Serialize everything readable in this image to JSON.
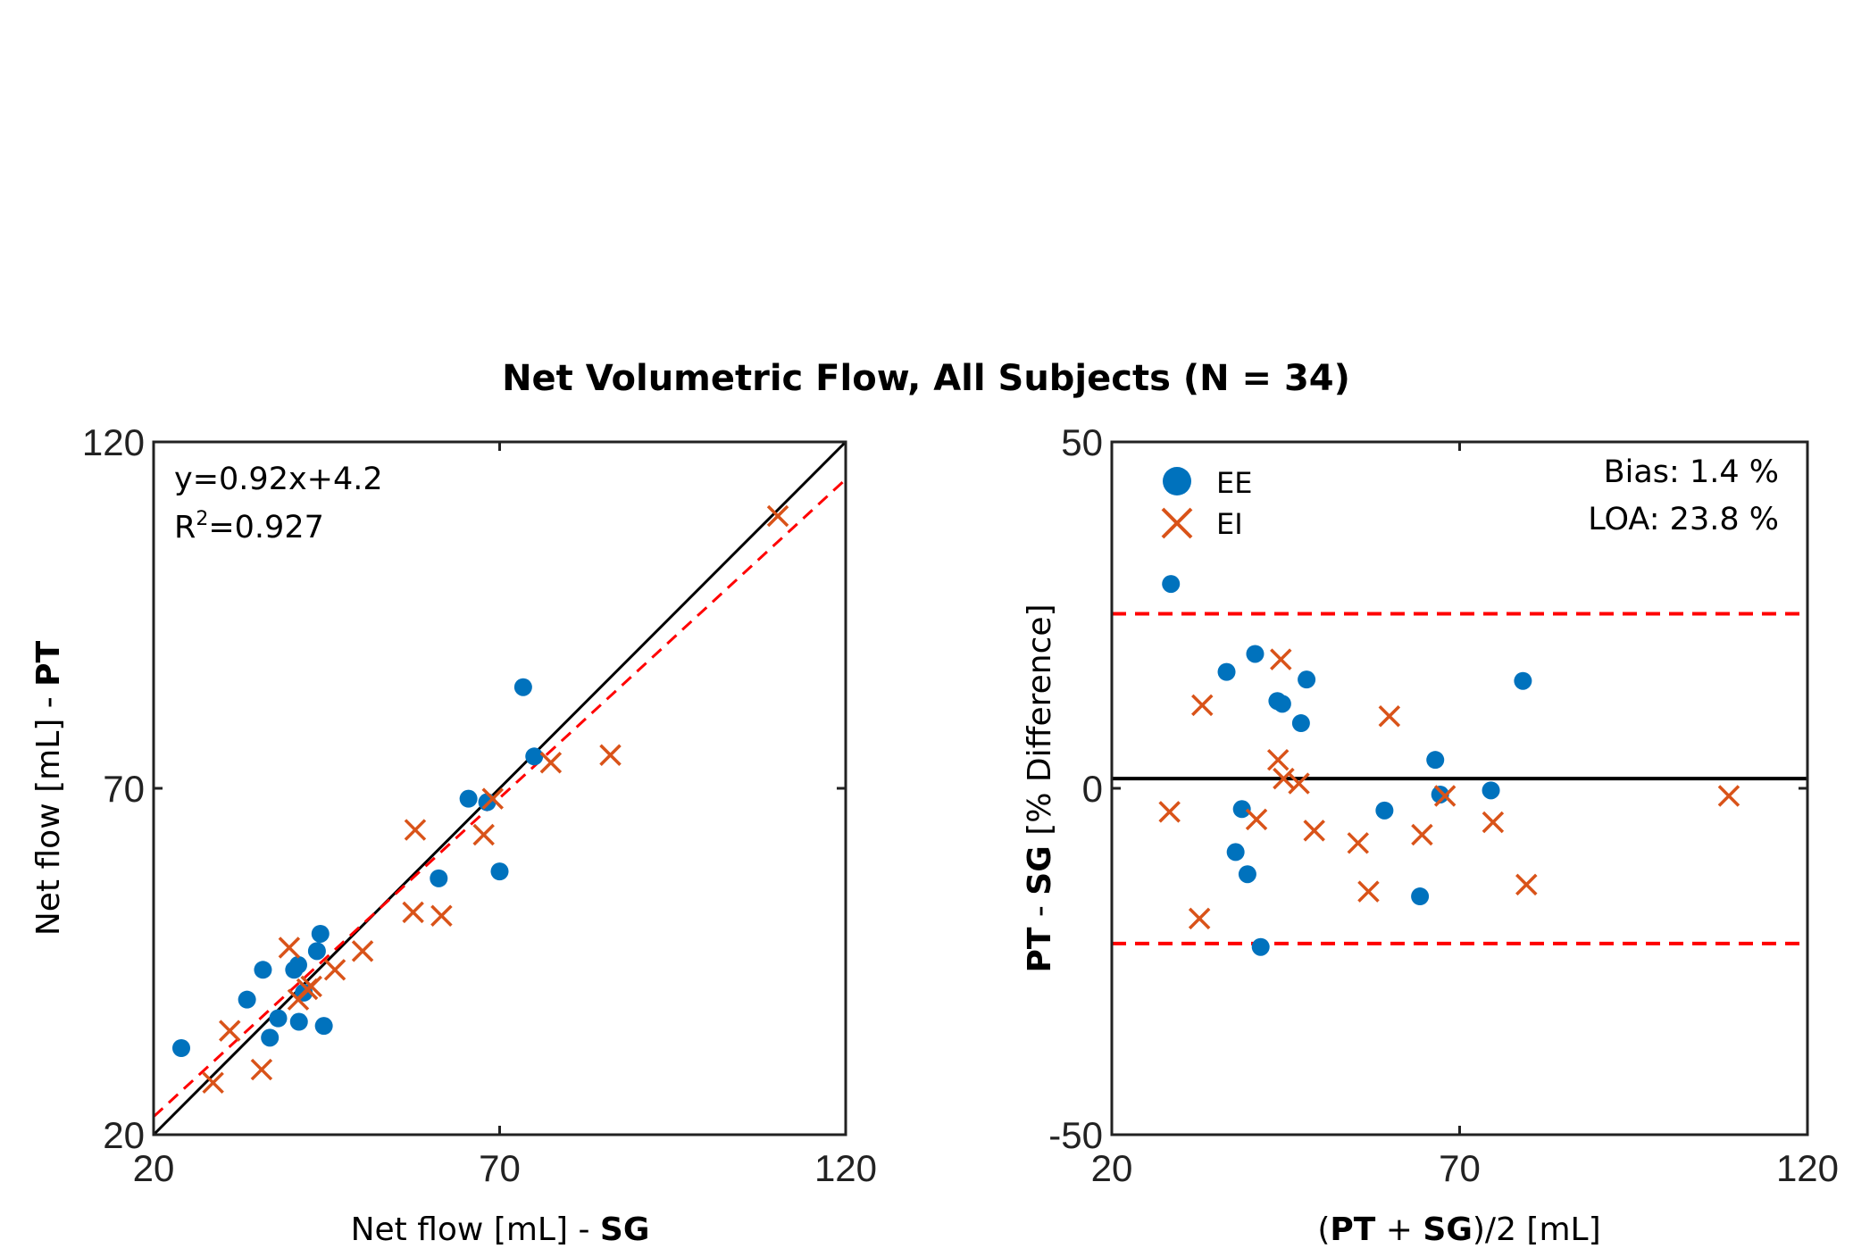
{
  "title": "Net Volumetric Flow, All Subjects (N = 34)",
  "colors": {
    "ee": "#0072BD",
    "ei": "#D95319",
    "fit": "#FF0000",
    "axis": "#222222"
  },
  "chart_data": [
    {
      "type": "scatter",
      "panel": "correlation",
      "xlabel": {
        "text": "Net flow [mL] - ",
        "bold": "SG"
      },
      "ylabel": {
        "text": "Net flow [mL] - ",
        "bold": "PT"
      },
      "xlim": [
        20,
        120
      ],
      "ylim": [
        20,
        120
      ],
      "xticks": [
        20,
        70,
        120
      ],
      "yticks": [
        20,
        70,
        120
      ],
      "equation": "y=0.92x+4.2",
      "r2_prefix": "R",
      "r2_sup": "2",
      "r2_value": "=0.927",
      "identity_line": {
        "x": [
          20,
          120
        ],
        "y": [
          20,
          120
        ]
      },
      "fit_line": {
        "slope": 0.92,
        "intercept": 4.2
      },
      "series": [
        {
          "name": "EE",
          "marker": "dot",
          "points": [
            [
              24,
              32.5
            ],
            [
              33.5,
              39.5
            ],
            [
              35.8,
              43.8
            ],
            [
              36.8,
              34
            ],
            [
              38,
              36.8
            ],
            [
              40.3,
              43.8
            ],
            [
              40.9,
              44.5
            ],
            [
              41,
              36.3
            ],
            [
              41.7,
              40.5
            ],
            [
              43.6,
              46.5
            ],
            [
              44.1,
              49
            ],
            [
              44.6,
              35.7
            ],
            [
              61.2,
              57
            ],
            [
              65.5,
              68.5
            ],
            [
              68.2,
              68
            ],
            [
              70,
              58
            ],
            [
              73.4,
              84.6
            ],
            [
              75,
              74.6
            ]
          ]
        },
        {
          "name": "EI",
          "marker": "cross",
          "points": [
            [
              28.6,
              27.5
            ],
            [
              31,
              35
            ],
            [
              35.6,
              29.4
            ],
            [
              39.6,
              47
            ],
            [
              40.9,
              39.5
            ],
            [
              42.2,
              41
            ],
            [
              42.8,
              41.4
            ],
            [
              46.2,
              43.8
            ],
            [
              50.2,
              46.5
            ],
            [
              57.5,
              52.1
            ],
            [
              57.8,
              64
            ],
            [
              61.6,
              51.6
            ],
            [
              67.7,
              63.3
            ],
            [
              69,
              68.5
            ],
            [
              77.4,
              73.7
            ],
            [
              86,
              74.8
            ],
            [
              110.2,
              109.3
            ]
          ]
        }
      ]
    },
    {
      "type": "scatter",
      "panel": "bland-altman",
      "xlabel": {
        "open": "(",
        "bold1": "PT",
        "mid": " + ",
        "bold2": "SG",
        "close": ")/2 [mL]"
      },
      "ylabel": {
        "bold1": "PT",
        "mid": " - ",
        "bold2": "SG",
        "rest": " [% Difference]"
      },
      "xlim": [
        20,
        120
      ],
      "ylim": [
        -50,
        50
      ],
      "xticks": [
        20,
        70,
        120
      ],
      "yticks": [
        -50,
        0,
        50
      ],
      "ytick_labels": [
        "-50",
        "0",
        "50"
      ],
      "bias_text": "Bias: 1.4 %",
      "loa_text": "LOA: 23.8 %",
      "bias": 1.4,
      "loa_upper": 25.2,
      "loa_lower": -22.4,
      "legend": [
        {
          "label": "EE",
          "marker": "dot"
        },
        {
          "label": "EI",
          "marker": "cross"
        }
      ],
      "series": [
        {
          "name": "EE",
          "marker": "dot",
          "points": [
            [
              28.5,
              29.5
            ],
            [
              36.5,
              16.8
            ],
            [
              37.8,
              -9.2
            ],
            [
              38.7,
              -3
            ],
            [
              39.5,
              -12.4
            ],
            [
              40.6,
              19.4
            ],
            [
              41.4,
              -22.9
            ],
            [
              43.8,
              12.6
            ],
            [
              44.5,
              12.2
            ],
            [
              47.2,
              9.4
            ],
            [
              48,
              15.7
            ],
            [
              59.2,
              -3.2
            ],
            [
              64.3,
              -15.6
            ],
            [
              66.5,
              4.1
            ],
            [
              67.2,
              -0.9
            ],
            [
              74.5,
              -0.3
            ],
            [
              79.1,
              15.5
            ]
          ]
        },
        {
          "name": "EI",
          "marker": "cross",
          "points": [
            [
              28.3,
              -3.4
            ],
            [
              32.6,
              -18.8
            ],
            [
              33,
              12
            ],
            [
              40.8,
              -4.5
            ],
            [
              43.9,
              4.1
            ],
            [
              44.3,
              18.6
            ],
            [
              44.7,
              1.4
            ],
            [
              46.9,
              0.7
            ],
            [
              49.1,
              -6.1
            ],
            [
              55.4,
              -7.9
            ],
            [
              56.9,
              -14.9
            ],
            [
              59.9,
              10.4
            ],
            [
              64.6,
              -6.7
            ],
            [
              67.9,
              -1.1
            ],
            [
              74.8,
              -4.9
            ],
            [
              79.6,
              -13.9
            ],
            [
              108.7,
              -1.1
            ]
          ]
        }
      ]
    }
  ]
}
